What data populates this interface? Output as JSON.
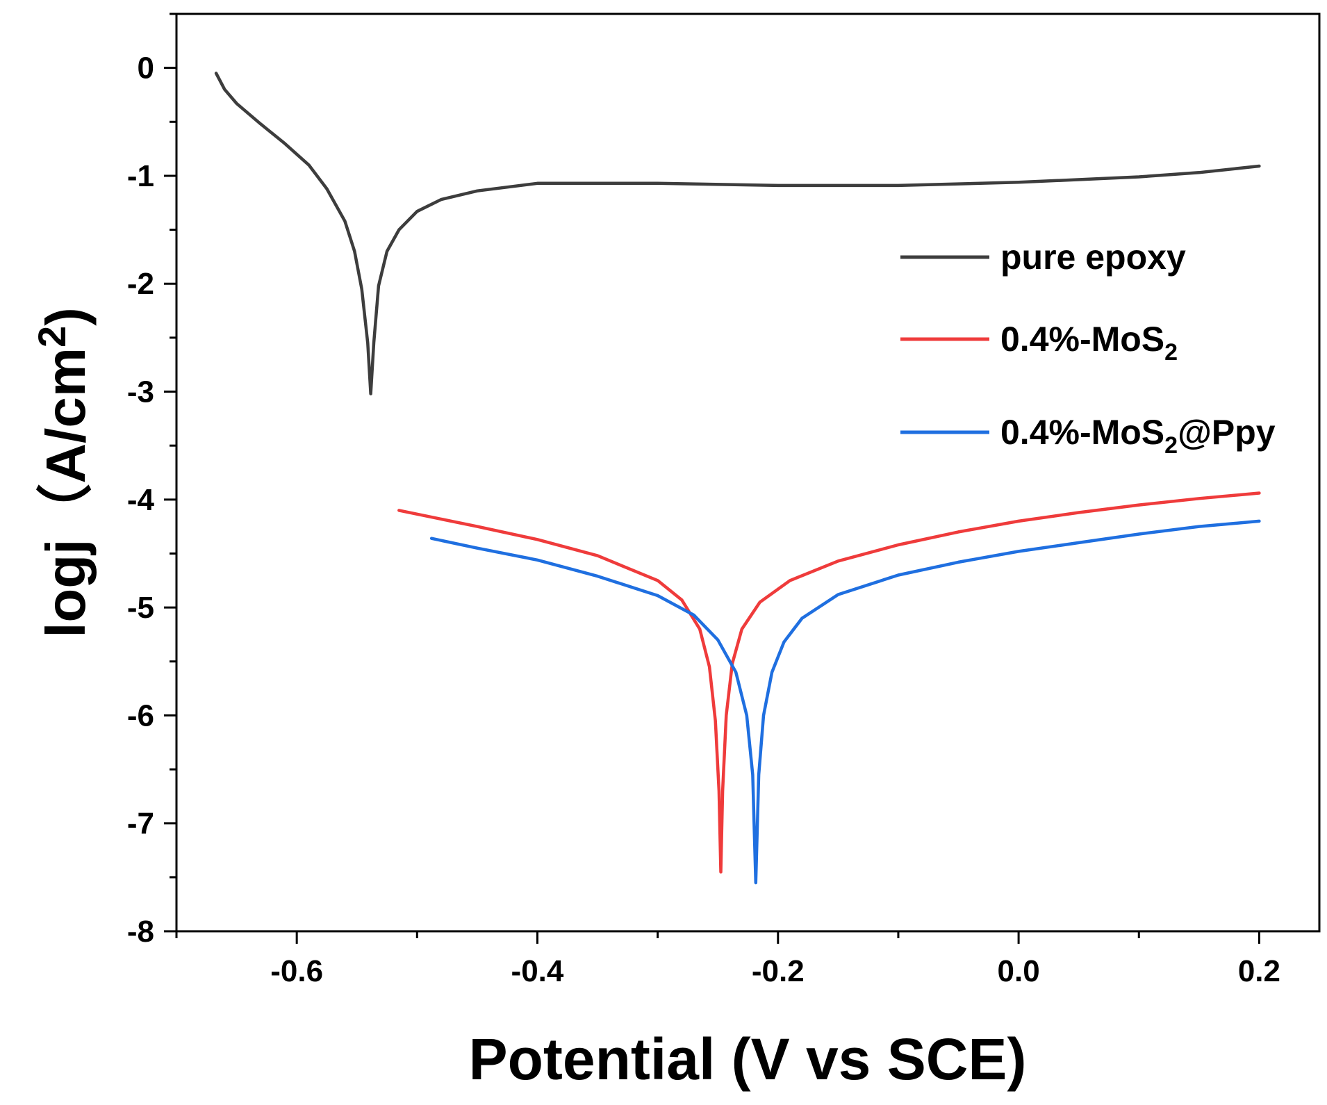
{
  "chart_data": {
    "type": "line",
    "title": "",
    "xlabel": "Potential (V vs SCE)",
    "ylabel_prefix": "logj（A/cm",
    "ylabel_sup": "2",
    "ylabel_suffix": ")",
    "xlim": [
      -0.7,
      0.25
    ],
    "ylim": [
      -8,
      0.5
    ],
    "x_ticks": [
      -0.6,
      -0.4,
      -0.2,
      0.0,
      0.2
    ],
    "x_tick_labels": [
      "-0.6",
      "-0.4",
      "-0.2",
      "0.0",
      "0.2"
    ],
    "x_minor_ticks": [
      -0.7,
      -0.5,
      -0.3,
      -0.1,
      0.1
    ],
    "y_ticks": [
      0,
      -1,
      -2,
      -3,
      -4,
      -5,
      -6,
      -7,
      -8
    ],
    "y_tick_labels": [
      "0",
      "-1",
      "-2",
      "-3",
      "-4",
      "-5",
      "-6",
      "-7",
      "-8"
    ],
    "y_minor_ticks": [
      0.5,
      -0.5,
      -1.5,
      -2.5,
      -3.5,
      -4.5,
      -5.5,
      -6.5,
      -7.5
    ],
    "grid": false,
    "legend_position": "right",
    "series": [
      {
        "name": "pure epoxy",
        "label_main": "pure epoxy",
        "label_sub": "",
        "label_tail": "",
        "color": "#3d3d3d",
        "points": [
          [
            -0.667,
            -0.05
          ],
          [
            -0.66,
            -0.2
          ],
          [
            -0.65,
            -0.33
          ],
          [
            -0.63,
            -0.52
          ],
          [
            -0.61,
            -0.7
          ],
          [
            -0.59,
            -0.9
          ],
          [
            -0.575,
            -1.12
          ],
          [
            -0.56,
            -1.42
          ],
          [
            -0.552,
            -1.7
          ],
          [
            -0.546,
            -2.05
          ],
          [
            -0.541,
            -2.55
          ],
          [
            -0.5385,
            -3.02
          ],
          [
            -0.536,
            -2.55
          ],
          [
            -0.532,
            -2.02
          ],
          [
            -0.525,
            -1.7
          ],
          [
            -0.515,
            -1.5
          ],
          [
            -0.5,
            -1.33
          ],
          [
            -0.48,
            -1.22
          ],
          [
            -0.45,
            -1.14
          ],
          [
            -0.4,
            -1.07
          ],
          [
            -0.3,
            -1.07
          ],
          [
            -0.2,
            -1.09
          ],
          [
            -0.1,
            -1.09
          ],
          [
            0.0,
            -1.06
          ],
          [
            0.1,
            -1.01
          ],
          [
            0.15,
            -0.97
          ],
          [
            0.2,
            -0.91
          ]
        ]
      },
      {
        "name": "0.4%-MoS2",
        "label_main": "0.4%-MoS",
        "label_sub": "2",
        "label_tail": "",
        "color": "#ef3b3b",
        "points": [
          [
            -0.515,
            -4.1
          ],
          [
            -0.45,
            -4.25
          ],
          [
            -0.4,
            -4.37
          ],
          [
            -0.35,
            -4.52
          ],
          [
            -0.3,
            -4.75
          ],
          [
            -0.28,
            -4.93
          ],
          [
            -0.265,
            -5.2
          ],
          [
            -0.257,
            -5.55
          ],
          [
            -0.252,
            -6.05
          ],
          [
            -0.249,
            -6.7
          ],
          [
            -0.2475,
            -7.45
          ],
          [
            -0.246,
            -6.7
          ],
          [
            -0.243,
            -6.0
          ],
          [
            -0.238,
            -5.52
          ],
          [
            -0.23,
            -5.2
          ],
          [
            -0.215,
            -4.95
          ],
          [
            -0.19,
            -4.75
          ],
          [
            -0.15,
            -4.57
          ],
          [
            -0.1,
            -4.42
          ],
          [
            -0.05,
            -4.3
          ],
          [
            0.0,
            -4.2
          ],
          [
            0.05,
            -4.12
          ],
          [
            0.1,
            -4.05
          ],
          [
            0.15,
            -3.99
          ],
          [
            0.2,
            -3.94
          ]
        ]
      },
      {
        "name": "0.4%-MoS2@Ppy",
        "label_main": "0.4%-MoS",
        "label_sub": "2",
        "label_tail": "@Ppy",
        "color": "#1f6fe0",
        "points": [
          [
            -0.488,
            -4.36
          ],
          [
            -0.45,
            -4.45
          ],
          [
            -0.4,
            -4.56
          ],
          [
            -0.35,
            -4.71
          ],
          [
            -0.3,
            -4.89
          ],
          [
            -0.27,
            -5.07
          ],
          [
            -0.25,
            -5.3
          ],
          [
            -0.235,
            -5.6
          ],
          [
            -0.226,
            -6.0
          ],
          [
            -0.221,
            -6.55
          ],
          [
            -0.2185,
            -7.55
          ],
          [
            -0.216,
            -6.55
          ],
          [
            -0.212,
            -6.0
          ],
          [
            -0.205,
            -5.6
          ],
          [
            -0.195,
            -5.32
          ],
          [
            -0.18,
            -5.1
          ],
          [
            -0.15,
            -4.88
          ],
          [
            -0.1,
            -4.7
          ],
          [
            -0.05,
            -4.58
          ],
          [
            0.0,
            -4.48
          ],
          [
            0.05,
            -4.4
          ],
          [
            0.1,
            -4.32
          ],
          [
            0.15,
            -4.25
          ],
          [
            0.2,
            -4.2
          ]
        ]
      }
    ]
  }
}
